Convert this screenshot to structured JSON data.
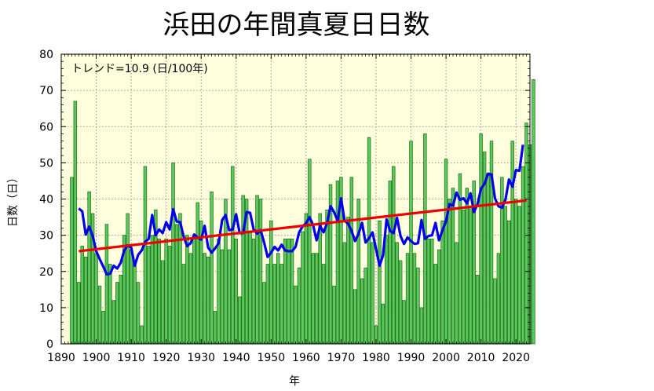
{
  "chart_data": {
    "type": "bar",
    "title": "浜田の年間真夏日日数",
    "xlabel": "年",
    "ylabel": "日数（日）",
    "annotation": "トレンド=10.9 (日/100年)",
    "xlim": [
      1890,
      2024
    ],
    "ylim": [
      0,
      80
    ],
    "x_ticks": [
      1890,
      1900,
      1910,
      1920,
      1930,
      1940,
      1950,
      1960,
      1970,
      1980,
      1990,
      2000,
      2010,
      2020
    ],
    "y_ticks": [
      0,
      10,
      20,
      30,
      40,
      50,
      60,
      70,
      80
    ],
    "grid": true,
    "colors": {
      "plot_bg": "#ffffdd",
      "bar_fill": "#5cc85c",
      "bar_stroke": "#1a6b1a",
      "moving_average": "#0000ee",
      "trend": "#ee0000"
    },
    "bars": {
      "start_year": 1893,
      "values": [
        46,
        67,
        17,
        27,
        24,
        42,
        36,
        25,
        16,
        9,
        33,
        22,
        12,
        17,
        19,
        30,
        36,
        26,
        22,
        17,
        5,
        49,
        27,
        30,
        37,
        29,
        23,
        29,
        27,
        50,
        33,
        36,
        22,
        30,
        25,
        30,
        39,
        34,
        25,
        24,
        42,
        9,
        29,
        26,
        40,
        26,
        49,
        29,
        13,
        41,
        40,
        31,
        29,
        41,
        40,
        17,
        22,
        34,
        22,
        25,
        22,
        29,
        29,
        29,
        16,
        21,
        31,
        36,
        51,
        25,
        25,
        36,
        22,
        37,
        44,
        16,
        45,
        46,
        28,
        35,
        46,
        15,
        40,
        18,
        21,
        57,
        28,
        5,
        34,
        11,
        30,
        45,
        49,
        28,
        23,
        12,
        25,
        56,
        25,
        21,
        10,
        58,
        29,
        29,
        22,
        26,
        34,
        51,
        40,
        43,
        28,
        47,
        37,
        43,
        38,
        45,
        19,
        58,
        53,
        47,
        56,
        18,
        25,
        46,
        38,
        34,
        56,
        40,
        38,
        49,
        61,
        55,
        73
      ]
    },
    "moving_average": {
      "start_year": 1895,
      "values": [
        37.4,
        36.6,
        30.2,
        32.4,
        29.8,
        25.6,
        23.4,
        21.4,
        19.2,
        19.4,
        21.6,
        20.8,
        22.4,
        25.8,
        27.2,
        26.6,
        21.6,
        24.6,
        25.8,
        28.2,
        29.0,
        35.6,
        30.0,
        31.6,
        30.6,
        33.6,
        31.6,
        37.2,
        33.8,
        33.6,
        29.6,
        27.0,
        27.8,
        30.2,
        29.4,
        28.8,
        32.6,
        26.6,
        25.2,
        26.4,
        27.8,
        34.2,
        35.6,
        31.4,
        31.6,
        35.8,
        30.6,
        30.6,
        36.4,
        36.2,
        31.6,
        30.4,
        31.4,
        28.0,
        24.0,
        25.2,
        26.8,
        25.8,
        27.4,
        25.8,
        25.6,
        25.6,
        26.8,
        30.8,
        32.4,
        33.4,
        35.0,
        32.8,
        28.6,
        32.6,
        30.8,
        33.4,
        38.0,
        36.4,
        34.0,
        40.2,
        34.0,
        33.2,
        31.2,
        28.4,
        30.4,
        33.4,
        28.0,
        29.2,
        30.8,
        26.2,
        21.6,
        24.4,
        34.4,
        31.2,
        30.6,
        34.8,
        29.8,
        27.6,
        29.4,
        28.4,
        27.6,
        27.8,
        34.2,
        29.0,
        29.8,
        30.0,
        33.4,
        28.6,
        31.4,
        33.8,
        38.6,
        38.2,
        41.8,
        39.8,
        40.2,
        38.8,
        41.6,
        36.4,
        38.6,
        42.8,
        44.2,
        47.0,
        46.8,
        40.2,
        38.0,
        37.6,
        39.8,
        45.4,
        43.4,
        48.0,
        47.8,
        55.0
      ]
    },
    "trend": {
      "x": [
        1895,
        2023
      ],
      "y": [
        25.6,
        39.6
      ]
    }
  }
}
